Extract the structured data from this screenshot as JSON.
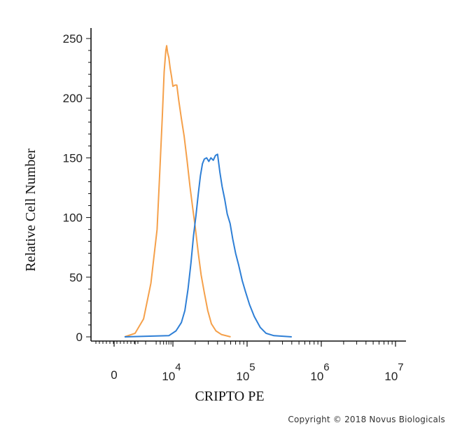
{
  "chart_data": {
    "type": "line",
    "title": "",
    "xlabel": "CRIPTO PE",
    "ylabel": "Relative Cell Number",
    "x_scale": "biexponential",
    "ylim": [
      0,
      250
    ],
    "y_ticks": [
      {
        "value": 0,
        "label": "0"
      },
      {
        "value": 50,
        "label": "50"
      },
      {
        "value": 100,
        "label": "100"
      },
      {
        "value": 150,
        "label": "150"
      },
      {
        "value": 200,
        "label": "200"
      },
      {
        "value": 250,
        "label": "250"
      }
    ],
    "x_ticks": [
      {
        "value": 0,
        "base": "0",
        "exp": ""
      },
      {
        "value": 10000,
        "base": "10",
        "exp": "4"
      },
      {
        "value": 100000,
        "base": "10",
        "exp": "5"
      },
      {
        "value": 1000000,
        "base": "10",
        "exp": "6"
      },
      {
        "value": 10000000,
        "base": "10",
        "exp": "7"
      }
    ],
    "grid": false,
    "legend": "none",
    "series": [
      {
        "color": "#f5a04a",
        "points": [
          [
            1000,
            0
          ],
          [
            2000,
            3
          ],
          [
            2800,
            15
          ],
          [
            3500,
            45
          ],
          [
            4200,
            90
          ],
          [
            4900,
            140
          ],
          [
            5600,
            185
          ],
          [
            6200,
            222
          ],
          [
            6800,
            240
          ],
          [
            7100,
            244
          ],
          [
            7500,
            238
          ],
          [
            8000,
            234
          ],
          [
            8600,
            225
          ],
          [
            9300,
            218
          ],
          [
            10000,
            210
          ],
          [
            10700,
            211
          ],
          [
            11300,
            211
          ],
          [
            12000,
            198
          ],
          [
            13000,
            183
          ],
          [
            14200,
            168
          ],
          [
            15500,
            148
          ],
          [
            17000,
            126
          ],
          [
            18500,
            108
          ],
          [
            20000,
            92
          ],
          [
            22000,
            70
          ],
          [
            24000,
            52
          ],
          [
            26500,
            37
          ],
          [
            29500,
            22
          ],
          [
            33000,
            11
          ],
          [
            38000,
            5
          ],
          [
            45000,
            2
          ],
          [
            60000,
            0
          ]
        ]
      },
      {
        "color": "#2e7fd6",
        "points": [
          [
            1000,
            0
          ],
          [
            8000,
            1
          ],
          [
            11000,
            5
          ],
          [
            13000,
            12
          ],
          [
            14500,
            22
          ],
          [
            16000,
            40
          ],
          [
            17500,
            62
          ],
          [
            19000,
            85
          ],
          [
            20500,
            102
          ],
          [
            22000,
            120
          ],
          [
            23500,
            135
          ],
          [
            25000,
            145
          ],
          [
            26500,
            149
          ],
          [
            28500,
            150
          ],
          [
            30500,
            147
          ],
          [
            32500,
            150
          ],
          [
            35000,
            148
          ],
          [
            37500,
            152
          ],
          [
            40000,
            153
          ],
          [
            43000,
            138
          ],
          [
            46000,
            126
          ],
          [
            50000,
            115
          ],
          [
            54000,
            103
          ],
          [
            59000,
            95
          ],
          [
            64000,
            82
          ],
          [
            70000,
            70
          ],
          [
            77000,
            60
          ],
          [
            86000,
            47
          ],
          [
            95000,
            38
          ],
          [
            108000,
            27
          ],
          [
            125000,
            17
          ],
          [
            150000,
            8
          ],
          [
            180000,
            3
          ],
          [
            230000,
            1
          ],
          [
            400000,
            0
          ]
        ]
      }
    ]
  },
  "copyright": "Copyright © 2018 Novus Biologicals"
}
